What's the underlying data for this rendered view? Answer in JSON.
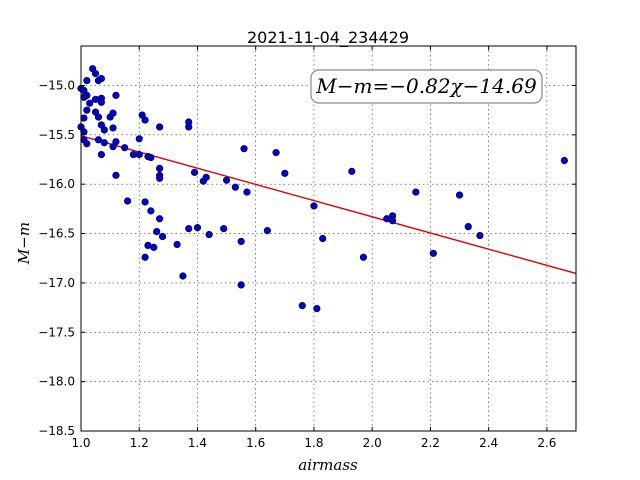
{
  "chart_data": {
    "type": "scatter",
    "title": "2021-11-04_234429",
    "xlabel": "airmass",
    "ylabel": "M−m",
    "xlim": [
      1.0,
      2.7
    ],
    "ylim": [
      -18.5,
      -14.6
    ],
    "invert_y": true,
    "grid": true,
    "x_ticks": [
      1.0,
      1.2,
      1.4,
      1.6,
      1.8,
      2.0,
      2.2,
      2.4,
      2.6
    ],
    "x_tick_labels": [
      "1.0",
      "1.2",
      "1.4",
      "1.6",
      "1.8",
      "2.0",
      "2.2",
      "2.4",
      "2.6"
    ],
    "y_ticks": [
      -15.0,
      -15.5,
      -16.0,
      -16.5,
      -17.0,
      -17.5,
      -18.0,
      -18.5
    ],
    "y_tick_labels": [
      "−15.0",
      "−15.5",
      "−16.0",
      "−16.5",
      "−17.0",
      "−17.5",
      "−18.0",
      "−18.5"
    ],
    "annotation": "M−m=−0.82χ−14.69",
    "fit": {
      "slope": -0.82,
      "intercept": -14.69,
      "color": "#dd0000"
    },
    "point_color": "#0000cc",
    "points": [
      [
        1.0,
        -15.03
      ],
      [
        1.01,
        -15.05
      ],
      [
        1.01,
        -15.12
      ],
      [
        1.02,
        -15.1
      ],
      [
        1.02,
        -15.25
      ],
      [
        1.01,
        -15.33
      ],
      [
        1.0,
        -15.42
      ],
      [
        1.01,
        -15.47
      ],
      [
        1.01,
        -15.55
      ],
      [
        1.02,
        -15.59
      ],
      [
        1.02,
        -14.95
      ],
      [
        1.03,
        -15.18
      ],
      [
        1.04,
        -14.83
      ],
      [
        1.05,
        -14.88
      ],
      [
        1.06,
        -14.95
      ],
      [
        1.07,
        -14.93
      ],
      [
        1.05,
        -15.14
      ],
      [
        1.05,
        -15.27
      ],
      [
        1.06,
        -15.32
      ],
      [
        1.07,
        -15.13
      ],
      [
        1.07,
        -15.17
      ],
      [
        1.07,
        -15.4
      ],
      [
        1.08,
        -15.45
      ],
      [
        1.1,
        -15.32
      ],
      [
        1.11,
        -15.28
      ],
      [
        1.12,
        -15.1
      ],
      [
        1.11,
        -15.43
      ],
      [
        1.06,
        -15.55
      ],
      [
        1.08,
        -15.58
      ],
      [
        1.07,
        -15.7
      ],
      [
        1.11,
        -15.62
      ],
      [
        1.12,
        -15.57
      ],
      [
        1.12,
        -15.91
      ],
      [
        1.15,
        -15.63
      ],
      [
        1.18,
        -15.7
      ],
      [
        1.2,
        -15.54
      ],
      [
        1.21,
        -15.3
      ],
      [
        1.22,
        -15.35
      ],
      [
        1.2,
        -15.7
      ],
      [
        1.23,
        -15.72
      ],
      [
        1.27,
        -15.42
      ],
      [
        1.27,
        -15.84
      ],
      [
        1.27,
        -15.91
      ],
      [
        1.27,
        -15.94
      ],
      [
        1.24,
        -15.73
      ],
      [
        1.16,
        -16.17
      ],
      [
        1.22,
        -16.18
      ],
      [
        1.24,
        -16.27
      ],
      [
        1.27,
        -16.35
      ],
      [
        1.26,
        -16.48
      ],
      [
        1.28,
        -16.53
      ],
      [
        1.23,
        -16.62
      ],
      [
        1.25,
        -16.64
      ],
      [
        1.22,
        -16.74
      ],
      [
        1.33,
        -16.61
      ],
      [
        1.35,
        -16.93
      ],
      [
        1.37,
        -15.42
      ],
      [
        1.37,
        -15.37
      ],
      [
        1.39,
        -15.88
      ],
      [
        1.42,
        -15.97
      ],
      [
        1.43,
        -15.93
      ],
      [
        1.37,
        -16.45
      ],
      [
        1.4,
        -16.44
      ],
      [
        1.44,
        -16.51
      ],
      [
        1.49,
        -16.45
      ],
      [
        1.5,
        -15.96
      ],
      [
        1.53,
        -16.03
      ],
      [
        1.56,
        -15.64
      ],
      [
        1.57,
        -16.08
      ],
      [
        1.55,
        -16.58
      ],
      [
        1.55,
        -17.02
      ],
      [
        1.64,
        -16.47
      ],
      [
        1.67,
        -15.68
      ],
      [
        1.7,
        -15.89
      ],
      [
        1.8,
        -16.22
      ],
      [
        1.81,
        -17.26
      ],
      [
        1.76,
        -17.23
      ],
      [
        1.83,
        -16.55
      ],
      [
        1.93,
        -15.87
      ],
      [
        1.97,
        -16.74
      ],
      [
        2.05,
        -16.35
      ],
      [
        2.07,
        -16.32
      ],
      [
        2.07,
        -16.37
      ],
      [
        2.15,
        -16.08
      ],
      [
        2.21,
        -16.7
      ],
      [
        2.3,
        -16.11
      ],
      [
        2.33,
        -16.43
      ],
      [
        2.37,
        -16.52
      ],
      [
        2.66,
        -15.76
      ]
    ]
  }
}
